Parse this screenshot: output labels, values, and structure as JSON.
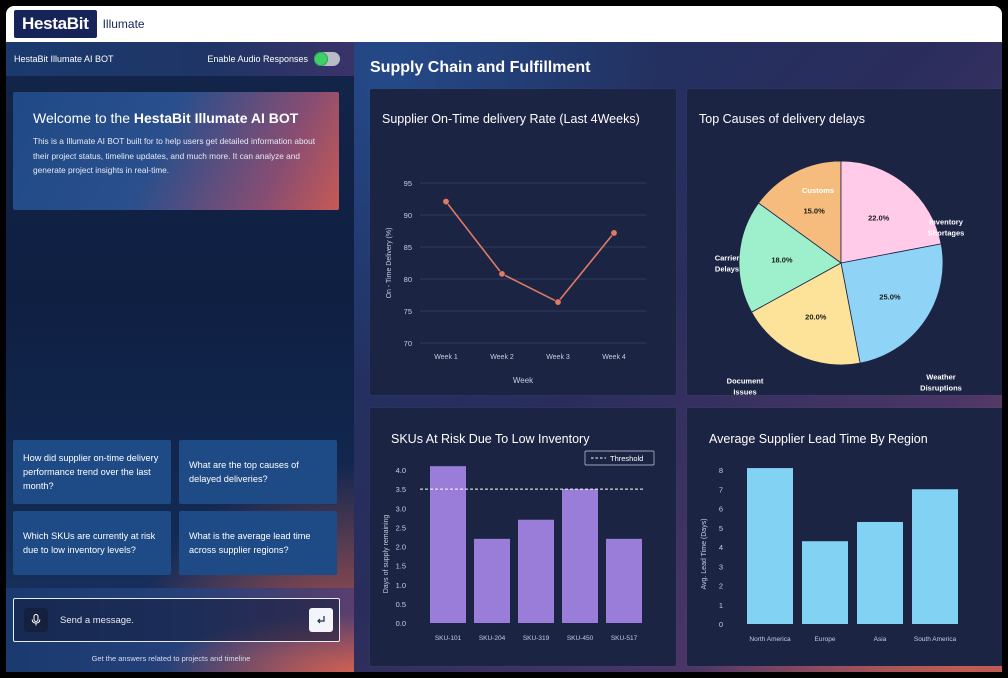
{
  "app": {
    "logo": "HestaBit",
    "name": "Illumate"
  },
  "sidebar": {
    "bot_title": "HestaBit Illumate AI BOT",
    "audio_label": "Enable Audio Responses",
    "welcome_prefix": "Welcome to the ",
    "welcome_bold": "HestaBit Illumate AI BOT",
    "welcome_text": "This is a Illumate AI BOT built for to help users get detailed information about their project status, timeline updates, and much more. It can analyze and generate project insights in real-time.",
    "suggestions": [
      "How did supplier on-time delivery performance trend over the last month?",
      "What are the top causes of delayed deliveries?",
      "Which SKUs are currently at risk due to low inventory levels?",
      "What is the average lead time across supplier regions?"
    ],
    "input_placeholder": "Send a message.",
    "footer_hint": "Get the answers related to projects and timeline"
  },
  "dashboard": {
    "title": "Supply Chain and Fulfillment"
  },
  "colors": {
    "line": "#e07b66",
    "pie": [
      "#f5bc7e",
      "#ffcbe8",
      "#8fd3f7",
      "#fde39a",
      "#9ef0cd"
    ],
    "bar_purple": "#9a7dd9",
    "bar_blue": "#82d2f3",
    "axis": "#c8cde0",
    "grid": "#3a4266"
  },
  "chart_data": [
    {
      "type": "line",
      "title": "Supplier On-Time delivery Rate (Last 4Weeks)",
      "categories": [
        "Week 1",
        "Week 2",
        "Week 3",
        "Week 4"
      ],
      "values": [
        92.1,
        80.8,
        76.4,
        87.2
      ],
      "xlabel": "Week",
      "ylabel": "On - Time Delivery (%)",
      "ylim": [
        70,
        95
      ],
      "yticks": [
        70,
        75,
        80,
        85,
        90,
        95
      ],
      "grid": true
    },
    {
      "type": "pie",
      "title": "Top Causes of delivery delays",
      "labels": [
        "Customs",
        "Inventory Shortages",
        "Weather Disruptions",
        "Document Issues",
        "Carrier Delays"
      ],
      "values": [
        15.0,
        22.0,
        25.0,
        20.0,
        18.0
      ],
      "value_labels": [
        "15.0%",
        "22.0%",
        "25.0%",
        "20.0%",
        "18.0%"
      ]
    },
    {
      "type": "bar",
      "title": "SKUs At Risk Due To Low Inventory",
      "categories": [
        "SKU-101",
        "SKU-204",
        "SKU-319",
        "SKU-450",
        "SKU-517"
      ],
      "values": [
        4.1,
        2.2,
        2.7,
        3.5,
        2.2
      ],
      "ylabel": "Days of supply remaining",
      "ylim": [
        0,
        4.0
      ],
      "yticks": [
        "0.0",
        "0.5",
        "1.0",
        "1.5",
        "2.0",
        "2.5",
        "3.0",
        "3.5",
        "4.0"
      ],
      "threshold": 3.5,
      "legend": "Threshold",
      "legend_position": "top-right"
    },
    {
      "type": "bar",
      "title": "Average Supplier Lead Time By Region",
      "categories": [
        "North America",
        "Europe",
        "Asia",
        "South America"
      ],
      "values": [
        8.1,
        4.3,
        5.3,
        7.0
      ],
      "ylabel": "Avg. Lead Time (Days)",
      "ylim": [
        0,
        8
      ],
      "yticks": [
        0,
        1,
        2,
        3,
        4,
        5,
        6,
        7,
        8
      ]
    }
  ]
}
